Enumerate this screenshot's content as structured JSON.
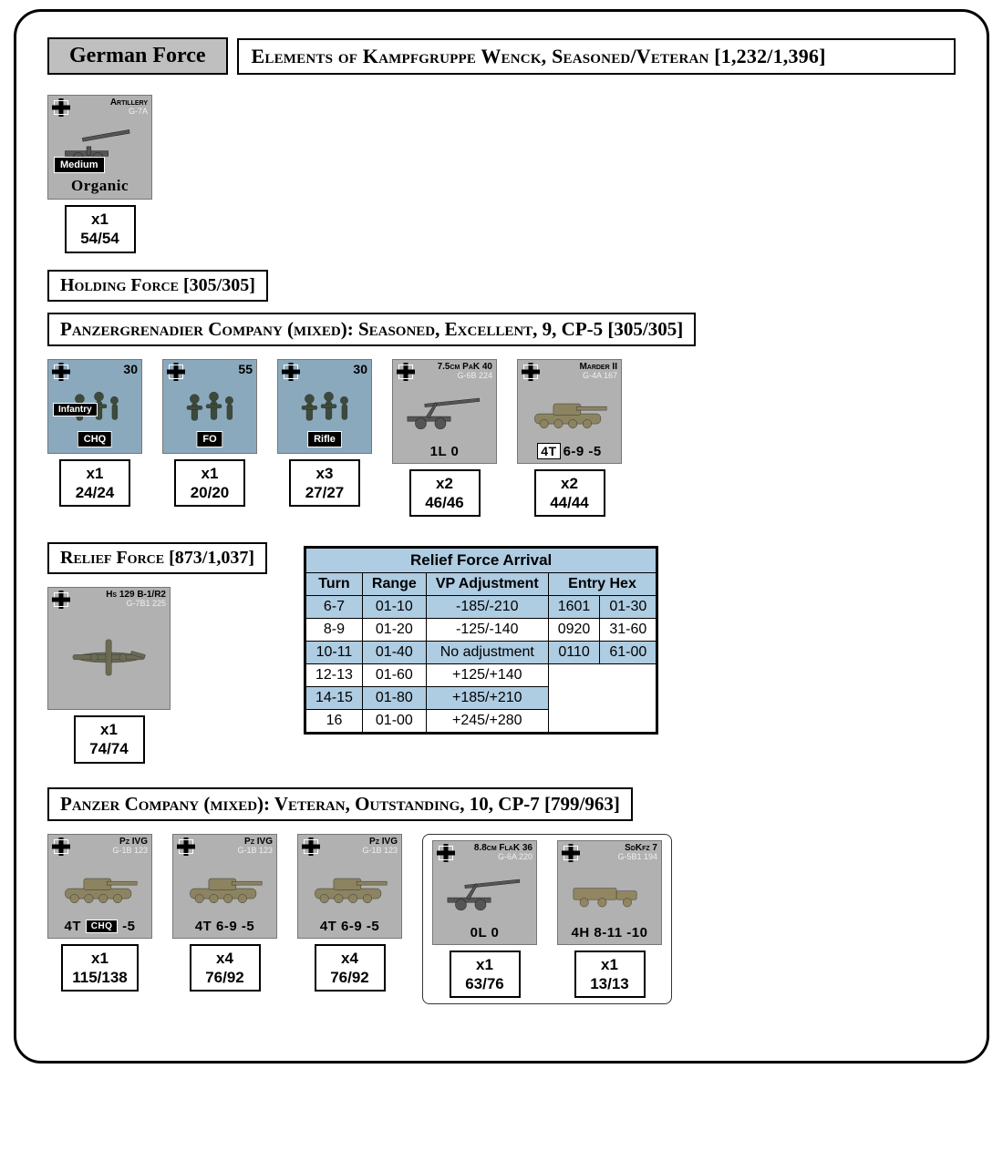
{
  "force_label": "German Force",
  "force_title": "Elements of Kampfgruppe Wenck, Seasoned/Veteran [1,232/1,396]",
  "artillery": {
    "name": "Artillery",
    "id": "G-7A",
    "tag1": "Medium",
    "caption": "Organic",
    "qty": "x1",
    "cost": "54/54"
  },
  "holding": {
    "title": "Holding Force [305/305]",
    "company_title": "Panzergrenadier Company (mixed): Seasoned, Excellent, 9, CP-5 [305/305]",
    "units": [
      {
        "bg": "blue",
        "corner": "30",
        "tag_top": "Infantry",
        "tag_bot": "CHQ",
        "qty": "x1",
        "cost": "24/24",
        "icon": "inf"
      },
      {
        "bg": "blue",
        "corner": "55",
        "tag_bot": "FO",
        "qty": "x1",
        "cost": "20/20",
        "icon": "inf"
      },
      {
        "bg": "blue",
        "corner": "30",
        "tag_bot": "Rifle",
        "qty": "x3",
        "cost": "27/27",
        "icon": "inf"
      },
      {
        "bg": "grey",
        "name": "7.5cm PaK 40",
        "id": "G-6B 224",
        "stats": "1L 0",
        "qty": "x2",
        "cost": "46/46",
        "icon": "gun"
      },
      {
        "bg": "grey",
        "name": "Marder II",
        "id": "G-4A 167",
        "statbox": "4T",
        "stats": "6-9 -5",
        "qty": "x2",
        "cost": "44/44",
        "icon": "tank"
      }
    ]
  },
  "relief": {
    "title": "Relief Force [873/1,037]",
    "plane": {
      "name": "Hs 129 B-1/R2",
      "id": "G-7B1 225",
      "qty": "x1",
      "cost": "74/74"
    },
    "table": {
      "title": "Relief Force Arrival",
      "headers": [
        "Turn",
        "Range",
        "VP Adjustment"
      ],
      "entry_header": "Entry Hex",
      "rows": [
        {
          "turn": "6-7",
          "range": "01-10",
          "vp": "-185/-210",
          "odd": true
        },
        {
          "turn": "8-9",
          "range": "01-20",
          "vp": "-125/-140"
        },
        {
          "turn": "10-11",
          "range": "01-40",
          "vp": "No adjustment",
          "odd": true
        },
        {
          "turn": "12-13",
          "range": "01-60",
          "vp": "+125/+140"
        },
        {
          "turn": "14-15",
          "range": "01-80",
          "vp": "+185/+210",
          "odd": true
        },
        {
          "turn": "16",
          "range": "01-00",
          "vp": "+245/+280"
        }
      ],
      "entry_rows": [
        {
          "hex": "1601",
          "rng": "01-30",
          "odd": true
        },
        {
          "hex": "0920",
          "rng": "31-60"
        },
        {
          "hex": "0110",
          "rng": "61-00",
          "odd": true
        }
      ]
    },
    "company_title": "Panzer Company (mixed): Veteran, Outstanding, 10, CP-7 [799/963]",
    "units": [
      {
        "bg": "grey",
        "name": "Pz IVG",
        "id": "G-1B 123",
        "stats_pre": "4T",
        "stats": "6-9 -5",
        "chq": true,
        "qty": "x1",
        "cost": "115/138",
        "icon": "tank"
      },
      {
        "bg": "grey",
        "name": "Pz IVG",
        "id": "G-1B 123",
        "stats": "4T 6-9 -5",
        "qty": "x4",
        "cost": "76/92",
        "icon": "tank"
      },
      {
        "bg": "grey",
        "name": "Pz IVG",
        "id": "G-1B 123",
        "stats": "4T 6-9 -5",
        "qty": "x4",
        "cost": "76/92",
        "icon": "tank"
      },
      {
        "bg": "grey",
        "name": "8.8cm FlaK 36",
        "id": "G-6A 220",
        "stats": "0L 0",
        "qty": "x1",
        "cost": "63/76",
        "icon": "gun",
        "group": true
      },
      {
        "bg": "grey",
        "name": "SdKfz 7",
        "id": "G-5B1 194",
        "stats": "4H 8-11 -10",
        "qty": "x1",
        "cost": "13/13",
        "icon": "truck",
        "group": true
      }
    ]
  }
}
